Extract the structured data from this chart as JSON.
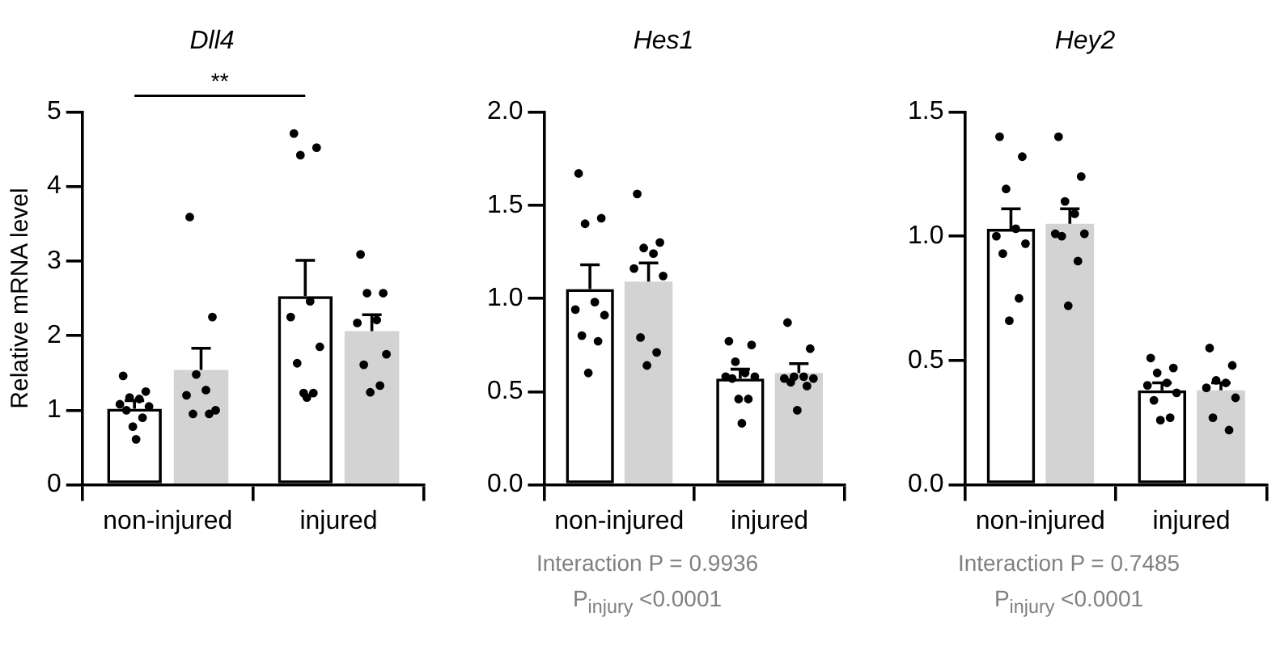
{
  "chart_data": [
    {
      "type": "bar",
      "title": "Dll4",
      "ylabel": "Relative mRNA level",
      "categories": [
        "non-injured",
        "injured"
      ],
      "ylim": [
        0,
        5
      ],
      "yticks": [
        0,
        1,
        2,
        3,
        4,
        5
      ],
      "grid": false,
      "legend": false,
      "marker": "circle",
      "annotations": [
        "**"
      ],
      "series": [
        {
          "color": "#000000",
          "values": [
            1.02,
            2.53
          ],
          "errors": [
            [
              1.02,
              1.13
            ],
            [
              2.53,
              3.01
            ]
          ]
        },
        {
          "color": "#d3d3d3",
          "values": [
            1.54,
            2.06
          ],
          "errors": [
            [
              1.54,
              1.83
            ],
            [
              2.06,
              2.28
            ]
          ]
        },
        {
          "type": "scatter",
          "color": "#000000",
          "x": [
            "non-injured",
            "non-injured",
            "non-injured",
            "non-injured",
            "non-injured",
            "non-injured",
            "non-injured",
            "non-injured",
            "non-injured",
            "non-injured",
            "injured",
            "injured",
            "injured",
            "injured",
            "injured",
            "injured",
            "injured",
            "injured",
            "injured",
            "injured"
          ],
          "values": [
            1.46,
            1.25,
            1.17,
            1.15,
            1.08,
            1.05,
            1.0,
            0.9,
            0.78,
            0.61,
            4.71,
            4.52,
            4.42,
            2.46,
            2.25,
            1.85,
            1.63,
            1.23,
            1.23,
            1.17
          ]
        },
        {
          "type": "scatter",
          "color": "#000000",
          "x": [
            "non-injured",
            "non-injured",
            "non-injured",
            "non-injured",
            "non-injured",
            "non-injured",
            "non-injured",
            "non-injured",
            "injured",
            "injured",
            "injured",
            "injured",
            "injured",
            "injured",
            "injured",
            "injured",
            "injured"
          ],
          "values": [
            3.59,
            2.25,
            1.48,
            1.27,
            1.2,
            1.0,
            0.95,
            0.95,
            3.09,
            2.57,
            2.57,
            2.21,
            2.17,
            1.75,
            1.61,
            1.33,
            1.24
          ]
        }
      ]
    },
    {
      "type": "bar",
      "title": "Hes1",
      "categories": [
        "non-injured",
        "injured"
      ],
      "ylim": [
        0,
        2
      ],
      "yticks": [
        {
          "value": 0,
          "label": "0.0"
        },
        {
          "value": 0.5,
          "label": "0.5"
        },
        {
          "value": 1,
          "label": "1.0"
        },
        {
          "value": 1.5,
          "label": "1.5"
        },
        {
          "value": 2,
          "label": "2.0"
        }
      ],
      "grid": false,
      "legend": false,
      "marker": "circle",
      "annotations": [
        "Interaction P = 0.9936",
        "P$_{injury}$ <0.0001"
      ],
      "series": [
        {
          "color": "#000000",
          "values": [
            1.05,
            0.57
          ],
          "errors": [
            [
              1.05,
              1.18
            ],
            [
              0.57,
              0.62
            ]
          ]
        },
        {
          "color": "#d3d3d3",
          "values": [
            1.09,
            0.6
          ],
          "errors": [
            [
              1.09,
              1.19
            ],
            [
              0.6,
              0.65
            ]
          ]
        },
        {
          "type": "scatter",
          "color": "#000000",
          "x": [
            "non-injured",
            "non-injured",
            "non-injured",
            "non-injured",
            "non-injured",
            "non-injured",
            "non-injured",
            "non-injured",
            "non-injured",
            "injured",
            "injured",
            "injured",
            "injured",
            "injured",
            "injured",
            "injured",
            "injured",
            "injured",
            "injured"
          ],
          "values": [
            1.67,
            1.43,
            1.4,
            0.98,
            0.94,
            0.91,
            0.8,
            0.77,
            0.6,
            0.77,
            0.75,
            0.66,
            0.6,
            0.58,
            0.58,
            0.57,
            0.46,
            0.46,
            0.33
          ]
        },
        {
          "type": "scatter",
          "color": "#000000",
          "x": [
            "non-injured",
            "non-injured",
            "non-injured",
            "non-injured",
            "non-injured",
            "non-injured",
            "non-injured",
            "non-injured",
            "non-injured",
            "injured",
            "injured",
            "injured",
            "injured",
            "injured",
            "injured",
            "injured",
            "injured",
            "injured"
          ],
          "values": [
            1.56,
            1.3,
            1.27,
            1.24,
            1.16,
            1.12,
            0.79,
            0.71,
            0.64,
            0.87,
            0.73,
            0.58,
            0.58,
            0.57,
            0.57,
            0.55,
            0.53,
            0.4
          ]
        }
      ]
    },
    {
      "type": "bar",
      "title": "Hey2",
      "categories": [
        "non-injured",
        "injured"
      ],
      "ylim": [
        0,
        1.5
      ],
      "yticks": [
        {
          "value": 0,
          "label": "0.0"
        },
        {
          "value": 0.5,
          "label": "0.5"
        },
        {
          "value": 1,
          "label": "1.0"
        },
        {
          "value": 1.5,
          "label": "1.5"
        }
      ],
      "grid": false,
      "legend": false,
      "marker": "circle",
      "annotations": [
        "Interaction P = 0.7485",
        "P$_{injury}$ <0.0001"
      ],
      "series": [
        {
          "color": "#000000",
          "values": [
            1.03,
            0.38
          ],
          "errors": [
            [
              1.03,
              1.11
            ],
            [
              0.38,
              0.41
            ]
          ]
        },
        {
          "color": "#d3d3d3",
          "values": [
            1.05,
            0.38
          ],
          "errors": [
            [
              1.05,
              1.11
            ],
            [
              0.38,
              0.41
            ]
          ]
        },
        {
          "type": "scatter",
          "color": "#000000",
          "x": [
            "non-injured",
            "non-injured",
            "non-injured",
            "non-injured",
            "non-injured",
            "non-injured",
            "non-injured",
            "non-injured",
            "non-injured",
            "injured",
            "injured",
            "injured",
            "injured",
            "injured",
            "injured",
            "injured",
            "injured",
            "injured"
          ],
          "values": [
            1.4,
            1.32,
            1.19,
            1.03,
            1.0,
            0.97,
            0.93,
            0.75,
            0.66,
            0.51,
            0.47,
            0.45,
            0.41,
            0.4,
            0.37,
            0.34,
            0.27,
            0.26
          ]
        },
        {
          "type": "scatter",
          "color": "#000000",
          "x": [
            "non-injured",
            "non-injured",
            "non-injured",
            "non-injured",
            "non-injured",
            "non-injured",
            "non-injured",
            "non-injured",
            "non-injured",
            "injured",
            "injured",
            "injured",
            "injured",
            "injured",
            "injured",
            "injured",
            "injured"
          ],
          "values": [
            1.4,
            1.24,
            1.14,
            1.09,
            1.01,
            1.01,
            1.0,
            0.9,
            0.72,
            0.55,
            0.48,
            0.42,
            0.41,
            0.39,
            0.35,
            0.27,
            0.22
          ]
        }
      ]
    }
  ]
}
